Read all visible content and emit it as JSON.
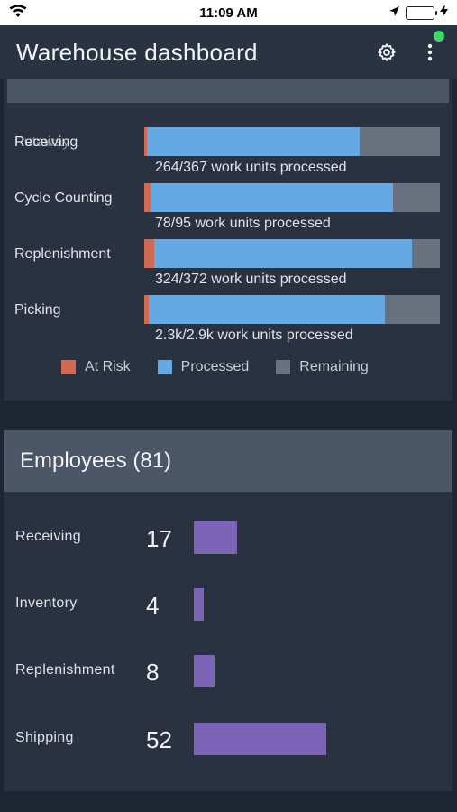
{
  "status_bar": {
    "time": "11:09 AM"
  },
  "app": {
    "title": "Warehouse dashboard"
  },
  "work": {
    "tasks": [
      {
        "label": "Receiving",
        "overlay_label": "Putaway",
        "note": "264/367 work units processed",
        "at_risk": 0.01,
        "processed": 0.72
      },
      {
        "label": "Cycle Counting",
        "note": "78/95 work units processed",
        "at_risk": 0.02,
        "processed": 0.82
      },
      {
        "label": "Replenishment",
        "note": "324/372 work units processed",
        "at_risk": 0.035,
        "processed": 0.87
      },
      {
        "label": "Picking",
        "note": "2.3k/2.9k work units processed",
        "at_risk": 0.015,
        "processed": 0.8
      }
    ],
    "legend": {
      "at_risk": "At Risk",
      "processed": "Processed",
      "remaining": "Remaining"
    },
    "colors": {
      "at_risk": "#d06a52",
      "processed": "#64a9e3",
      "remaining": "#6a7280"
    }
  },
  "employees": {
    "title": "Employees (81)",
    "rows": [
      {
        "label": "Receiving",
        "count": "17",
        "value": 17
      },
      {
        "label": "Inventory",
        "count": "4",
        "value": 4
      },
      {
        "label": "Replenishment",
        "count": "8",
        "value": 8
      },
      {
        "label": "Shipping",
        "count": "52",
        "value": 52
      }
    ],
    "bar_color": "#7b63b5"
  }
}
